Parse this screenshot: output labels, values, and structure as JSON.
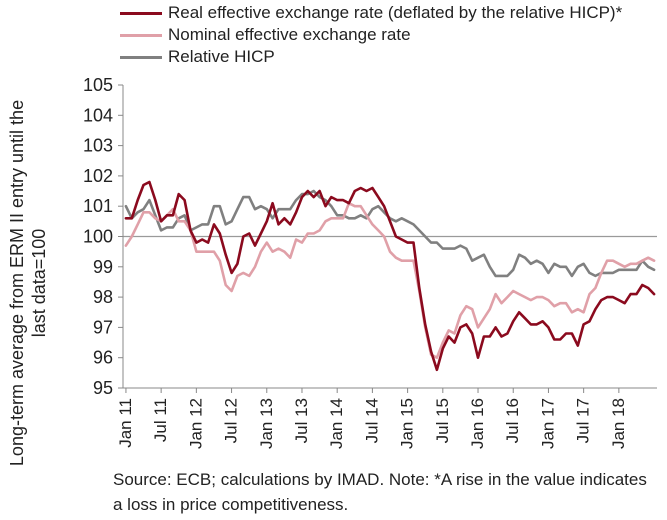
{
  "chart_data": {
    "type": "line",
    "ylabel": "Long-term average from ERM II entry until the last data=100",
    "ylim": [
      95,
      105
    ],
    "yticks": [
      95,
      96,
      97,
      98,
      99,
      100,
      101,
      102,
      103,
      104,
      105
    ],
    "xtick_labels": [
      "Jan 11",
      "Jul 11",
      "Jan 12",
      "Jul 12",
      "Jan 13",
      "Jul 13",
      "Jan 14",
      "Jul 14",
      "Jan 15",
      "Jul 15",
      "Jan 16",
      "Jul 16",
      "Jan 17",
      "Jul 17",
      "Jan 18"
    ],
    "start_month": "2011-01",
    "months_count": 91,
    "legend_position": "top",
    "reference_line": 100,
    "series": [
      {
        "name": "Real effective exchange rate (deflated by the relative HICP)*",
        "color": "#8B0A1E",
        "values": [
          100.6,
          100.6,
          101.2,
          101.7,
          101.8,
          101.2,
          100.5,
          100.7,
          100.7,
          101.4,
          101.2,
          100.2,
          99.8,
          99.9,
          99.8,
          100.4,
          100.1,
          99.4,
          98.8,
          99.1,
          100.0,
          100.1,
          99.7,
          100.1,
          100.5,
          101.1,
          100.4,
          100.6,
          100.4,
          100.8,
          101.3,
          101.5,
          101.3,
          101.5,
          101.0,
          101.3,
          101.2,
          101.2,
          101.1,
          101.5,
          101.6,
          101.5,
          101.6,
          101.3,
          101.0,
          100.5,
          100.0,
          99.9,
          99.8,
          99.8,
          98.3,
          97.1,
          96.2,
          95.6,
          96.3,
          96.7,
          96.5,
          97.0,
          97.1,
          96.8,
          96.0,
          96.7,
          96.7,
          97.0,
          96.7,
          96.8,
          97.2,
          97.5,
          97.3,
          97.1,
          97.1,
          97.2,
          97.0,
          96.6,
          96.6,
          96.8,
          96.8,
          96.4,
          97.1,
          97.2,
          97.6,
          97.9,
          98.0,
          98.0,
          97.9,
          97.8,
          98.1,
          98.1,
          98.4,
          98.3,
          98.1
        ]
      },
      {
        "name": "Nominal effective exchange rate",
        "color": "#E0A0A8",
        "values": [
          99.7,
          100.0,
          100.4,
          100.8,
          100.8,
          100.6,
          100.5,
          100.7,
          100.9,
          100.5,
          100.5,
          100.2,
          99.5,
          99.5,
          99.5,
          99.5,
          99.2,
          98.4,
          98.2,
          98.7,
          98.8,
          98.7,
          99.0,
          99.5,
          99.8,
          99.5,
          99.6,
          99.5,
          99.3,
          99.9,
          99.8,
          100.1,
          100.1,
          100.2,
          100.5,
          100.6,
          100.6,
          100.6,
          101.1,
          101.0,
          101.0,
          100.7,
          100.4,
          100.2,
          100.0,
          99.5,
          99.3,
          99.2,
          99.2,
          99.2,
          98.2,
          97.0,
          96.1,
          96.0,
          96.5,
          96.9,
          96.8,
          97.4,
          97.7,
          97.6,
          97.0,
          97.3,
          97.6,
          98.1,
          97.8,
          98.0,
          98.2,
          98.1,
          98.0,
          97.9,
          98.0,
          98.0,
          97.9,
          97.7,
          97.8,
          97.8,
          97.5,
          97.6,
          97.5,
          98.1,
          98.3,
          98.8,
          99.2,
          99.2,
          99.1,
          99.0,
          99.1,
          99.1,
          99.2,
          99.3,
          99.2
        ]
      },
      {
        "name": "Relative HICP",
        "color": "#808080",
        "values": [
          101.0,
          100.6,
          100.8,
          100.9,
          101.2,
          100.7,
          100.2,
          100.3,
          100.3,
          100.6,
          100.7,
          100.2,
          100.3,
          100.4,
          100.4,
          101.0,
          101.0,
          100.4,
          100.5,
          100.9,
          101.3,
          101.3,
          100.9,
          101.0,
          100.9,
          100.6,
          100.9,
          100.9,
          100.9,
          101.2,
          101.4,
          101.4,
          101.5,
          101.3,
          101.2,
          101.0,
          100.7,
          100.7,
          100.6,
          100.6,
          100.7,
          100.6,
          100.9,
          101.0,
          100.8,
          100.6,
          100.5,
          100.6,
          100.5,
          100.4,
          100.2,
          100.0,
          99.8,
          99.8,
          99.6,
          99.6,
          99.6,
          99.7,
          99.6,
          99.2,
          99.3,
          99.4,
          99.0,
          98.7,
          98.7,
          98.7,
          98.9,
          99.4,
          99.3,
          99.1,
          99.2,
          99.1,
          98.8,
          99.1,
          99.0,
          99.0,
          98.7,
          99.0,
          99.1,
          98.8,
          98.7,
          98.8,
          98.8,
          98.8,
          98.9,
          98.9,
          98.9,
          98.9,
          99.2,
          99.0,
          98.9
        ]
      }
    ]
  },
  "source_text": "Source: ECB; calculations by IMAD. Note: *A rise in the value indicates a loss in price competitiveness."
}
